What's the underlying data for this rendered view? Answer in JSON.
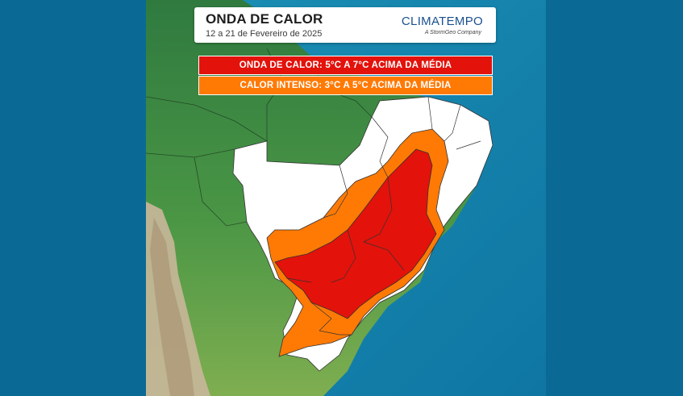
{
  "header": {
    "title": "ONDA DE CALOR",
    "subtitle": "12 a 21 de Fevereiro de 2025",
    "brand": "CLIMATEMPO",
    "brand_tagline": "A StormGeo Company"
  },
  "legend": [
    {
      "label": "ONDA DE CALOR: 5°C A 7°C ACIMA DA MÉDIA",
      "color": "#e3120b"
    },
    {
      "label": "CALOR INTENSO: 3°C A 5°C ACIMA DA MÉDIA",
      "color": "#ff7a05"
    }
  ],
  "colors": {
    "ocean": "#0a6a95",
    "land_north": "#3a8a4a",
    "land_south": "#6fa84a",
    "andes": "#c9b79a",
    "brazil_base": "#ffffff",
    "heat_wave": "#e3120b",
    "intense_heat": "#ff7a05"
  }
}
